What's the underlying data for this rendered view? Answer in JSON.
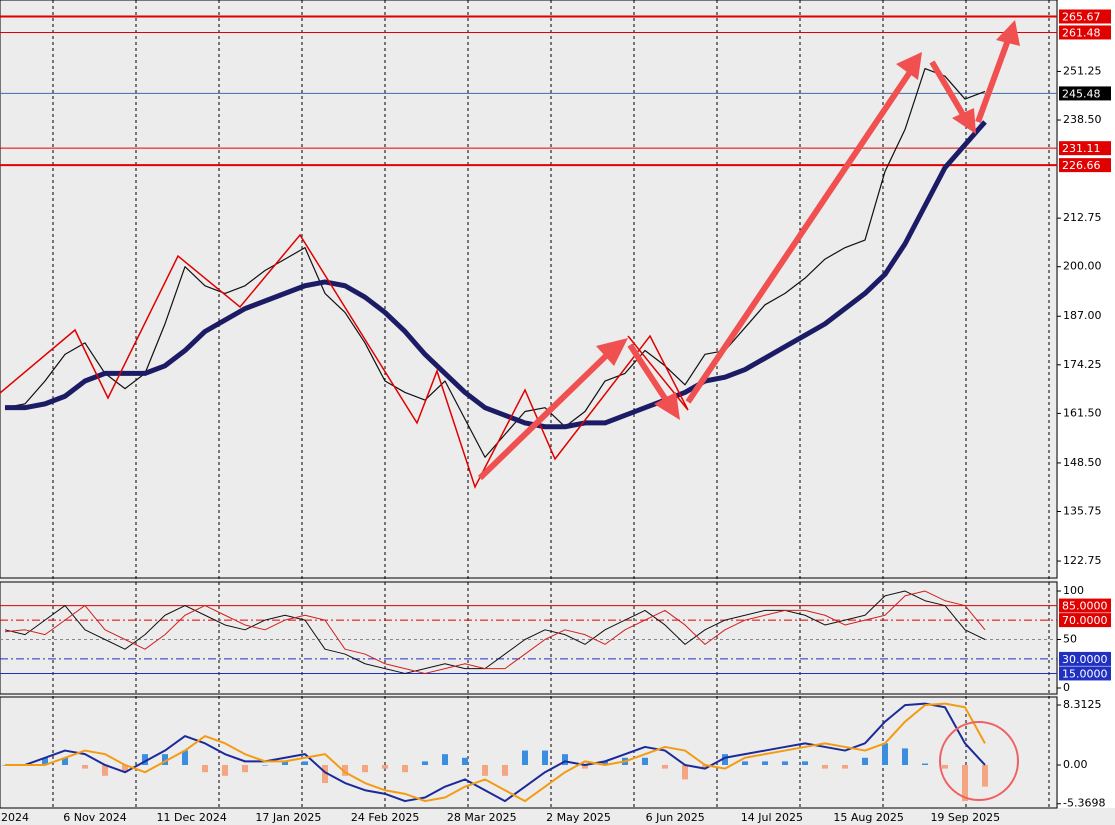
{
  "chart_data": [
    {
      "type": "line",
      "ylim": [
        118.3,
        270
      ],
      "yticks": [
        {
          "value": 251.25,
          "label": "251.25"
        },
        {
          "value": 238.5,
          "label": "238.50"
        },
        {
          "value": 212.75,
          "label": "212.75"
        },
        {
          "value": 200,
          "label": "200.00"
        },
        {
          "value": 187,
          "label": "187.00"
        },
        {
          "value": 174.25,
          "label": "174.25"
        },
        {
          "value": 161.5,
          "label": "161.50"
        },
        {
          "value": 148.5,
          "label": "148.50"
        },
        {
          "value": 135.75,
          "label": "135.75"
        },
        {
          "value": 122.75,
          "label": "122.75"
        }
      ],
      "levels": [
        {
          "value": 265.67,
          "label": "265.67",
          "color": "#e00000",
          "style": "solid"
        },
        {
          "value": 261.48,
          "label": "261.48",
          "color": "#e00000",
          "style": "solid"
        },
        {
          "value": 245.48,
          "label": "245.48",
          "color": "#3a6ea5",
          "style": "solid",
          "label_color": "#000000"
        },
        {
          "value": 231.11,
          "label": "231.11",
          "color": "#e00000",
          "style": "solid"
        },
        {
          "value": 226.66,
          "label": "226.66",
          "color": "#e00000",
          "style": "solid"
        }
      ],
      "series": [
        {
          "color": "#111111",
          "line_width": 1.2,
          "values": [
            163,
            164,
            170,
            177,
            180,
            172,
            168,
            172,
            185,
            200,
            195,
            193,
            195,
            199,
            202,
            205,
            193,
            188,
            180,
            170,
            167,
            165,
            170,
            160,
            150,
            156,
            162,
            163,
            158,
            162,
            170,
            172,
            178,
            174,
            169,
            177,
            178,
            184,
            190,
            193,
            197,
            202,
            205,
            207,
            225,
            236,
            252,
            250,
            244,
            246
          ]
        },
        {
          "color": "#1c1c66",
          "line_width": 5,
          "values": [
            163,
            163,
            164,
            166,
            170,
            172,
            172,
            172,
            174,
            178,
            183,
            186,
            189,
            191,
            193,
            195,
            196,
            195,
            192,
            188,
            183,
            177,
            172,
            167,
            163,
            161,
            159,
            158,
            158,
            159,
            159,
            161,
            163,
            165,
            167,
            170,
            171,
            173,
            176,
            179,
            182,
            185,
            189,
            193,
            198,
            206,
            216,
            226,
            232,
            238
          ]
        }
      ],
      "x_axis_labels": [
        "2024",
        "6 Nov 2024",
        "11 Dec 2024",
        "17 Jan 2025",
        "24 Feb 2025",
        "28 Mar 2025",
        "2 May 2025",
        "6 Jun 2025",
        "14 Jul 2025",
        "15 Aug 2025",
        "19 Sep 2025"
      ]
    },
    {
      "type": "line",
      "ylim": [
        -6.2,
        109.3
      ],
      "yticks": [
        100,
        50,
        0
      ],
      "levels": [
        {
          "value": 85,
          "label": "85.0000",
          "color": "#e00000",
          "style": "solid"
        },
        {
          "value": 70,
          "label": "70.0000",
          "color": "#e00000",
          "style": "dashdot"
        },
        {
          "value": 50,
          "color": "#888888",
          "style": "dashed"
        },
        {
          "value": 30,
          "label": "30.0000",
          "color": "#2030c0",
          "style": "dashdot"
        },
        {
          "value": 15,
          "label": "15.0000",
          "color": "#2030c0",
          "style": "solid"
        }
      ],
      "series": [
        {
          "color": "#111111",
          "line_width": 1,
          "values": [
            60,
            55,
            70,
            85,
            60,
            50,
            40,
            55,
            75,
            85,
            75,
            65,
            60,
            70,
            75,
            70,
            40,
            35,
            25,
            20,
            15,
            20,
            25,
            20,
            20,
            35,
            50,
            60,
            55,
            45,
            60,
            70,
            80,
            65,
            45,
            60,
            70,
            75,
            80,
            80,
            75,
            65,
            70,
            75,
            95,
            100,
            90,
            85,
            60,
            50
          ]
        },
        {
          "color": "#d02020",
          "line_width": 1,
          "values": [
            58,
            60,
            55,
            70,
            85,
            60,
            50,
            40,
            55,
            75,
            85,
            75,
            65,
            60,
            70,
            75,
            70,
            40,
            35,
            25,
            20,
            15,
            20,
            25,
            20,
            20,
            35,
            50,
            60,
            55,
            45,
            60,
            70,
            80,
            65,
            45,
            60,
            70,
            75,
            80,
            80,
            75,
            65,
            70,
            75,
            95,
            100,
            90,
            85,
            60
          ]
        }
      ]
    },
    {
      "type": "macd",
      "ylim": [
        -5.96,
        9.42
      ],
      "yticks": [
        8.3125,
        {
          "value": 0,
          "label": "0.00"
        },
        -5.3698
      ],
      "histogram": {
        "pos_color": "#3b8de0",
        "neg_color": "#f4a582",
        "values": [
          0,
          0,
          1,
          1,
          -0.5,
          -1.5,
          -1,
          1.5,
          1.5,
          2,
          -1,
          -1.5,
          -1,
          0,
          0.5,
          0.5,
          -2.5,
          -1.5,
          -1,
          -0.5,
          -1,
          0.5,
          1.5,
          1,
          -1.5,
          -1.5,
          2,
          2,
          1.5,
          -0.5,
          0.5,
          1,
          1,
          -0.5,
          -2,
          -0.5,
          1.5,
          0.5,
          0.5,
          0.5,
          0.5,
          -0.5,
          -0.5,
          1,
          3,
          2.3,
          0.2,
          -0.5,
          -5,
          -3
        ]
      },
      "series": [
        {
          "color": "#1c2a99",
          "line_width": 2,
          "values": [
            0,
            0,
            1,
            2,
            1.5,
            0,
            -1,
            0.5,
            2,
            4,
            3,
            1.5,
            0.5,
            0.5,
            1,
            1.5,
            -1,
            -2.5,
            -3.5,
            -4,
            -5,
            -4.5,
            -3,
            -2,
            -3.5,
            -5,
            -3,
            -1,
            0.5,
            0,
            0.5,
            1.5,
            2.5,
            2,
            0,
            -0.5,
            1,
            1.5,
            2,
            2.5,
            3,
            2.5,
            2,
            3,
            6,
            8.3,
            8.5,
            8,
            3,
            0
          ]
        },
        {
          "color": "#f39c12",
          "line_width": 2,
          "values": [
            0,
            0,
            0,
            1,
            2,
            1.5,
            0,
            -1,
            0.5,
            2,
            4,
            3,
            1.5,
            0.5,
            0.5,
            1,
            1.5,
            -1,
            -2.5,
            -3.5,
            -4,
            -5,
            -4.5,
            -3,
            -2,
            -3.5,
            -5,
            -3,
            -1,
            0.5,
            0,
            0.5,
            1.5,
            2.5,
            2,
            0,
            -0.5,
            1,
            1.5,
            2,
            2.5,
            3,
            2.5,
            2,
            3,
            6,
            8.3,
            8.5,
            8,
            3
          ]
        }
      ]
    }
  ]
}
